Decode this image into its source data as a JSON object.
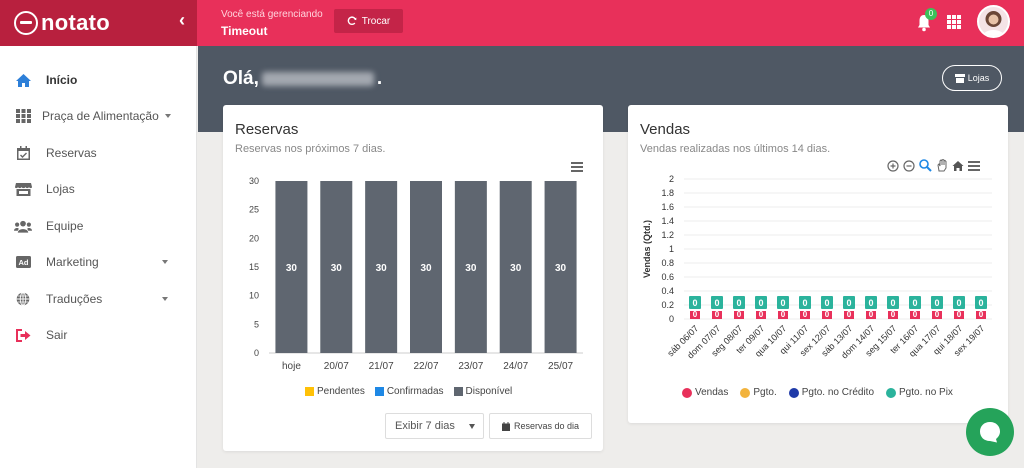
{
  "app": {
    "logo": "notato",
    "logo_icon": "notato-logo-icon"
  },
  "topbar": {
    "managing_label": "Você está gerenciando",
    "store_name": "Timeout",
    "switch_label": "Trocar",
    "notification_count": "0",
    "accent": "#e8305a"
  },
  "sidebar": {
    "items": [
      {
        "label": "Início",
        "icon": "home-icon",
        "active": true
      },
      {
        "label": "Praça de Alimentação",
        "icon": "grid-icon",
        "has_caret": true
      },
      {
        "label": "Reservas",
        "icon": "calendar-check-icon"
      },
      {
        "label": "Lojas",
        "icon": "store-icon"
      },
      {
        "label": "Equipe",
        "icon": "users-icon"
      },
      {
        "label": "Marketing",
        "icon": "ad-icon",
        "has_caret": true
      },
      {
        "label": "Traduções",
        "icon": "globe-icon",
        "has_caret": true
      },
      {
        "label": "Sair",
        "icon": "sign-out-icon"
      }
    ]
  },
  "main": {
    "greeting": "Olá,",
    "greeting_end": ".",
    "stores_button": "Lojas"
  },
  "reservas": {
    "title": "Reservas",
    "subtitle": "Reservas nos próximos 7 dias.",
    "select_value": "Exibir 7 dias",
    "day_button": "Reservas do dia",
    "legend": [
      {
        "label": "Pendentes",
        "color": "#ffc107"
      },
      {
        "label": "Confirmadas",
        "color": "#1e88e5"
      },
      {
        "label": "Disponível",
        "color": "#5f6670"
      }
    ]
  },
  "vendas": {
    "title": "Vendas",
    "subtitle": "Vendas realizadas nos últimos 14 dias.",
    "legend": [
      {
        "label": "Vendas",
        "color": "#e8305a"
      },
      {
        "label": "Pgto.",
        "color": "#f2b33d"
      },
      {
        "label": "Pgto. no Crédito",
        "color": "#1f3aa8"
      },
      {
        "label": "Pgto. no Pix",
        "color": "#2bb39c"
      }
    ]
  },
  "chart_data": [
    {
      "type": "bar",
      "categories": [
        "hoje",
        "20/07",
        "21/07",
        "22/07",
        "23/07",
        "24/07",
        "25/07"
      ],
      "series": [
        {
          "name": "Pendentes",
          "values": [
            0,
            0,
            0,
            0,
            0,
            0,
            0
          ]
        },
        {
          "name": "Confirmadas",
          "values": [
            0,
            0,
            0,
            0,
            0,
            0,
            0
          ]
        },
        {
          "name": "Disponível",
          "values": [
            30,
            30,
            30,
            30,
            30,
            30,
            30
          ]
        }
      ],
      "yticks": [
        "0",
        "5",
        "10",
        "15",
        "20",
        "25",
        "30"
      ],
      "ylim": [
        0,
        30
      ],
      "stacked": true,
      "legend_position": "bottom"
    },
    {
      "type": "bar",
      "categories": [
        "sáb 06/07",
        "dom 07/07",
        "seg 08/07",
        "ter 09/07",
        "qua 10/07",
        "qui 11/07",
        "sex 12/07",
        "sáb 13/07",
        "dom 14/07",
        "seg 15/07",
        "ter 16/07",
        "qua 17/07",
        "qui 18/07",
        "sex 19/07"
      ],
      "category_labels": [
        "sáb 06/07",
        "dom 07/07",
        "seg 08/07",
        "ter 09/07",
        "qua 10/07",
        "qui 11/07",
        "sex 12/07",
        "sáb 13/07",
        "dom 14/07",
        "seg 15/07",
        "ter 16/07",
        "qua 17/07",
        "qui 18/07",
        "sex 19/07"
      ],
      "series": [
        {
          "name": "Vendas",
          "values": [
            0,
            0,
            0,
            0,
            0,
            0,
            0,
            0,
            0,
            0,
            0,
            0,
            0,
            0
          ]
        },
        {
          "name": "Pgto.",
          "values": [
            0,
            0,
            0,
            0,
            0,
            0,
            0,
            0,
            0,
            0,
            0,
            0,
            0,
            0
          ]
        },
        {
          "name": "Pgto. no Crédito",
          "values": [
            0,
            0,
            0,
            0,
            0,
            0,
            0,
            0,
            0,
            0,
            0,
            0,
            0,
            0
          ]
        },
        {
          "name": "Pgto. no Pix",
          "values": [
            0,
            0,
            0,
            0,
            0,
            0,
            0,
            0,
            0,
            0,
            0,
            0,
            0,
            0
          ]
        }
      ],
      "ylabel": "Vendas (Qtd.)",
      "yticks": [
        "0",
        "0.2",
        "0.4",
        "0.6",
        "0.8",
        "1",
        "1.2",
        "1.4",
        "1.6",
        "1.8",
        "2"
      ],
      "ylim": [
        0,
        2
      ],
      "data_labels": [
        "0",
        "0"
      ],
      "legend_position": "bottom"
    }
  ]
}
